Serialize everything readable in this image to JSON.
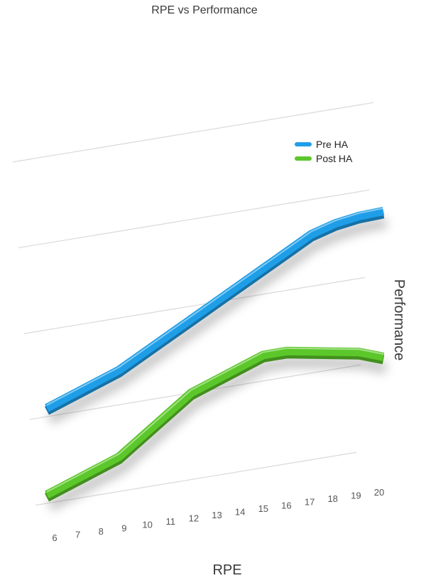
{
  "chart_data": {
    "type": "line",
    "title": "RPE vs Performance",
    "xlabel": "RPE",
    "ylabel": "Performance",
    "categories": [
      "6",
      "7",
      "8",
      "9",
      "10",
      "11",
      "12",
      "13",
      "14",
      "15",
      "16",
      "17",
      "18",
      "19",
      "20"
    ],
    "ylim": [
      0,
      4
    ],
    "grid": true,
    "legend": "top-right",
    "series": [
      {
        "name": "Pre HA",
        "color": "#1f9ee8",
        "values": [
          1.1,
          1.2,
          1.3,
          1.4,
          1.55,
          1.7,
          1.85,
          2.0,
          2.15,
          2.3,
          2.45,
          2.6,
          2.68,
          2.72,
          2.73
        ]
      },
      {
        "name": "Post HA",
        "color": "#5cc72a",
        "values": [
          0.1,
          0.2,
          0.3,
          0.4,
          0.6,
          0.8,
          1.0,
          1.1,
          1.2,
          1.3,
          1.3,
          1.25,
          1.2,
          1.15,
          1.05
        ]
      }
    ]
  }
}
